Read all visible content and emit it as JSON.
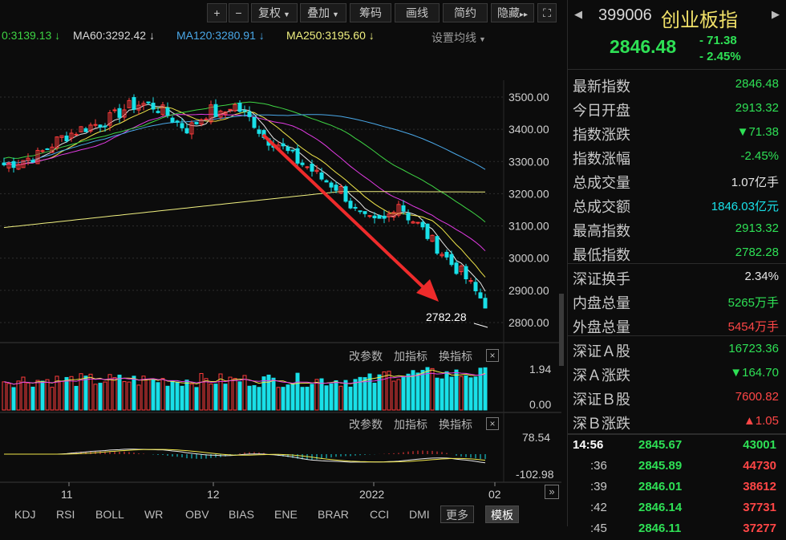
{
  "toolbar": {
    "zoom_in": "+",
    "zoom_out": "−",
    "fuquan": "复权",
    "diejia": "叠加",
    "chouma": "筹码",
    "huaxian": "画线",
    "jianyue": "简约",
    "yincang": "隐藏",
    "more": "▸▸",
    "fullscreen": "⛶"
  },
  "ma_legend": {
    "ma_first": "0:3139.13 ↓",
    "ma60": "MA60:3292.42 ↓",
    "ma120": "MA120:3280.91 ↓",
    "ma250": "MA250:3195.60 ↓",
    "settings": "设置均线"
  },
  "colors": {
    "up": "#ff3b3b",
    "down": "#19e0e8",
    "ma_white": "#e6e6e6",
    "ma_yellow": "#f0e64a",
    "ma_magenta": "#e23be4",
    "ma_green": "#3ed444",
    "ma_blue": "#4aa8e8",
    "ma250": "#f0f080",
    "price_green": "#2ee055",
    "price_red": "#ff4646",
    "title_yellow": "#f0e068"
  },
  "main_chart": {
    "price_ticks": [
      "3500.00",
      "3400.00",
      "3300.00",
      "3200.00",
      "3100.00",
      "3000.00",
      "2900.00",
      "2800.00"
    ],
    "low_label": "2782.28",
    "annotation": "red-down-arrow"
  },
  "volume_panel": {
    "btn_params": "改参数",
    "btn_add": "加指标",
    "btn_switch": "换指标",
    "ticks": [
      "1.94",
      "0.00"
    ],
    "close": "×"
  },
  "macd_panel": {
    "btn_params": "改参数",
    "btn_add": "加指标",
    "btn_switch": "换指标",
    "ticks": [
      "78.54",
      "-102.98"
    ],
    "close": "×"
  },
  "x_axis": {
    "labels": [
      "11",
      "12",
      "2022",
      "02"
    ],
    "expand": "»"
  },
  "bottom_tabs": [
    "KDJ",
    "RSI",
    "BOLL",
    "WR",
    "OBV",
    "BIAS",
    "ENE",
    "BRAR",
    "CCI",
    "DMI",
    "更多",
    "模板"
  ],
  "quote": {
    "code": "399006",
    "name": "创业板指",
    "price": "2846.48",
    "change": "- 71.38",
    "change_pct": "- 2.45%",
    "fields": [
      {
        "label": "最新指数",
        "value": "2846.48",
        "color": "#2ee055"
      },
      {
        "label": "今日开盘",
        "value": "2913.32",
        "color": "#2ee055"
      },
      {
        "label": "指数涨跌",
        "value": "▼71.38",
        "color": "#2ee055"
      },
      {
        "label": "指数涨幅",
        "value": "-2.45%",
        "color": "#2ee055"
      },
      {
        "label": "总成交量",
        "value": "1.07亿手",
        "color": "#e6e6e6"
      },
      {
        "label": "总成交额",
        "value": "1846.03亿元",
        "color": "#19e0e8"
      },
      {
        "label": "最高指数",
        "value": "2913.32",
        "color": "#2ee055"
      },
      {
        "label": "最低指数",
        "value": "2782.28",
        "color": "#2ee055"
      },
      {
        "label": "深证换手",
        "value": "2.34%",
        "color": "#e6e6e6"
      },
      {
        "label": "内盘总量",
        "value": "5265万手",
        "color": "#2ee055"
      },
      {
        "label": "外盘总量",
        "value": "5454万手",
        "color": "#ff4646"
      },
      {
        "label": "深证Ａ股",
        "value": "16723.36",
        "color": "#2ee055"
      },
      {
        "label": "深Ａ涨跌",
        "value": "▼164.70",
        "color": "#2ee055"
      },
      {
        "label": "深证Ｂ股",
        "value": "7600.82",
        "color": "#ff4646"
      },
      {
        "label": "深Ｂ涨跌",
        "value": "▲1.05",
        "color": "#ff4646"
      }
    ],
    "ticks": [
      {
        "time": "14:56",
        "price": "2845.67",
        "vol": "43001"
      },
      {
        "time": ":36",
        "price": "2845.89",
        "vol": "44730"
      },
      {
        "time": ":39",
        "price": "2846.01",
        "vol": "38612"
      },
      {
        "time": ":42",
        "price": "2846.14",
        "vol": "37731"
      },
      {
        "time": ":45",
        "price": "2846.11",
        "vol": "37277"
      }
    ]
  }
}
